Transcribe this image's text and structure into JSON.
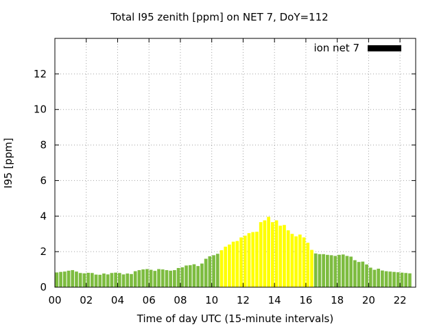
{
  "chart_data": {
    "type": "bar",
    "title": "Total I95 zenith [ppm] on NET 7, DoY=112",
    "xlabel": "Time of day UTC (15-minute intervals)",
    "ylabel": "I95 [ppm]",
    "legend": {
      "label": "ion net 7",
      "color": "#000000",
      "placement": "top-right"
    },
    "xlim": [
      0,
      23
    ],
    "ylim": [
      0,
      14
    ],
    "x_ticks": [
      "00",
      "02",
      "04",
      "06",
      "08",
      "10",
      "12",
      "14",
      "16",
      "18",
      "20",
      "22"
    ],
    "y_ticks": [
      "0",
      "2",
      "4",
      "6",
      "8",
      "10",
      "12"
    ],
    "grid": true,
    "bin_hours": 0.25,
    "threshold_coloring": {
      "low_color": "#7dbc40",
      "high_color": "#ffff00",
      "threshold": 2.0
    },
    "values": [
      0.83,
      0.86,
      0.88,
      0.93,
      0.96,
      0.88,
      0.8,
      0.78,
      0.81,
      0.8,
      0.71,
      0.7,
      0.77,
      0.72,
      0.8,
      0.82,
      0.8,
      0.72,
      0.77,
      0.74,
      0.9,
      0.96,
      1.0,
      1.02,
      0.98,
      0.92,
      1.02,
      1.0,
      0.96,
      0.93,
      0.96,
      1.08,
      1.12,
      1.22,
      1.24,
      1.29,
      1.19,
      1.33,
      1.6,
      1.74,
      1.8,
      1.88,
      2.08,
      2.28,
      2.4,
      2.56,
      2.6,
      2.8,
      2.9,
      3.04,
      3.1,
      3.12,
      3.66,
      3.76,
      3.96,
      3.66,
      3.76,
      3.46,
      3.5,
      3.2,
      3.0,
      2.86,
      2.96,
      2.8,
      2.5,
      2.1,
      1.9,
      1.86,
      1.86,
      1.82,
      1.8,
      1.76,
      1.82,
      1.84,
      1.76,
      1.72,
      1.52,
      1.42,
      1.44,
      1.28,
      1.1,
      0.98,
      1.04,
      0.94,
      0.9,
      0.88,
      0.86,
      0.84,
      0.82,
      0.8,
      0.78
    ]
  }
}
